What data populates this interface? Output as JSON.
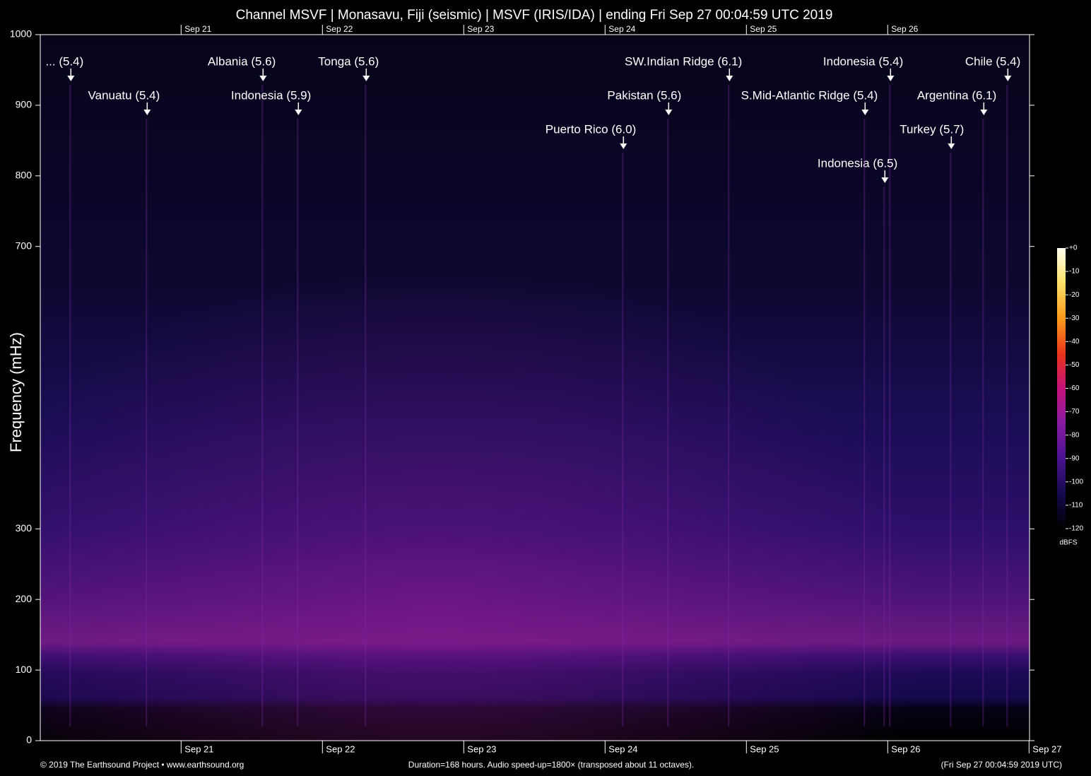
{
  "chart_data": {
    "type": "spectrogram",
    "title": "Channel MSVF | Monasavu, Fiji (seismic) | MSVF (IRIS/IDA) | ending Fri Sep 27 00:04:59 UTC 2019",
    "y_label": "Frequency (mHz)",
    "ylim": [
      0,
      1000
    ],
    "yticks": [
      0,
      100,
      200,
      300,
      700,
      800,
      900,
      1000
    ],
    "xlim": [
      20.0035,
      27.0035
    ],
    "xticks": [
      {
        "value": 21,
        "label": "Sep 21"
      },
      {
        "value": 22,
        "label": "Sep 22"
      },
      {
        "value": 23,
        "label": "Sep 23"
      },
      {
        "value": 24,
        "label": "Sep 24"
      },
      {
        "value": 25,
        "label": "Sep 25"
      },
      {
        "value": 26,
        "label": "Sep 26"
      },
      {
        "value": 27,
        "label": "Sep 27"
      }
    ],
    "events": [
      {
        "label": "... (5.4)",
        "x": 20.22
      },
      {
        "label": "Albania (5.6)",
        "x": 21.58
      },
      {
        "label": "Tonga (5.6)",
        "x": 22.31
      },
      {
        "label": "SW.Indian Ridge (6.1)",
        "x": 24.88
      },
      {
        "label": "Indonesia (5.4)",
        "x": 26.02
      },
      {
        "label": "Chile (5.4)",
        "x": 26.85
      },
      {
        "label": "Vanuatu (5.4)",
        "x": 20.76
      },
      {
        "label": "Indonesia (5.9)",
        "x": 21.83
      },
      {
        "label": "Pakistan (5.6)",
        "x": 24.45
      },
      {
        "label": "Argentina (6.1)",
        "x": 26.68
      },
      {
        "label": "Puerto Rico (6.0)",
        "x": 24.13
      },
      {
        "label": "Turkey (5.7)",
        "x": 26.45
      },
      {
        "label": "Indonesia (6.5)",
        "x": 25.98
      },
      {
        "label": "S.Mid-Atlantic Ridge (5.4)",
        "x": 25.84
      }
    ],
    "colorbar": {
      "label": "dBFS",
      "lim": [
        -120,
        0
      ],
      "ticks": [
        {
          "value": 0,
          "label": "+0"
        },
        -10,
        -20,
        -30,
        -40,
        -50,
        -60,
        -70,
        -80,
        -90,
        -100,
        -110,
        -120
      ]
    },
    "footer_left": "© 2019 The Earthsound Project • www.earthsound.org",
    "footer_center": "Duration=168 hours. Audio speed-up=1800× (transposed about 11 octaves).",
    "footer_right": "(Fri Sep 27 00:04:59 2019 UTC)"
  }
}
